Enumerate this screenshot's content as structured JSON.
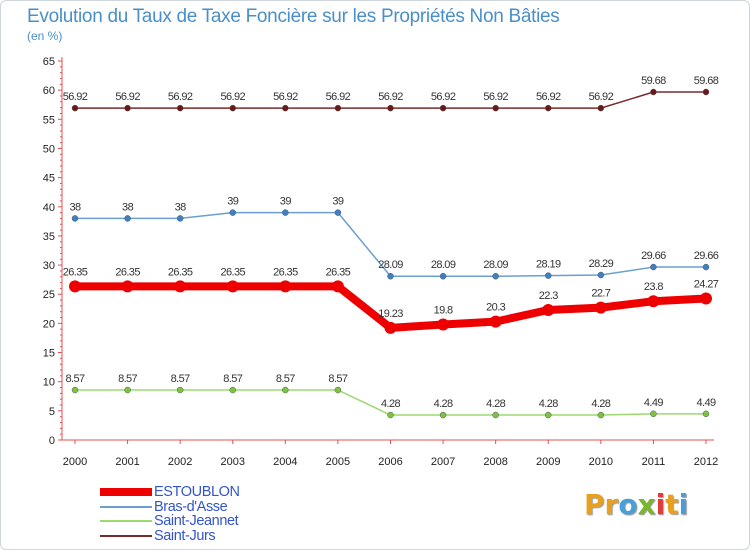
{
  "title": "Evolution du Taux de Taxe Foncière sur les Propriétés Non Bâties",
  "unit_label": "(en %)",
  "logo": {
    "text": "Proxiti",
    "letters": [
      {
        "ch": "P",
        "color": "#e8a020"
      },
      {
        "ch": "r",
        "color": "#e8a020"
      },
      {
        "ch": "o",
        "color": "#4a9fd8"
      },
      {
        "ch": "x",
        "color": "#78b828"
      },
      {
        "ch": "i",
        "color": "#e03a3a"
      },
      {
        "ch": "t",
        "color": "#e8a020"
      },
      {
        "ch": "i",
        "color": "#4a9fd8"
      }
    ]
  },
  "chart_data": {
    "type": "line",
    "title": "Evolution du Taux de Taxe Foncière sur les Propriétés Non Bâties",
    "ylabel": "(en %)",
    "xlabel": "",
    "ylim": [
      0,
      65
    ],
    "yticks": [
      0,
      5,
      10,
      15,
      20,
      25,
      30,
      35,
      40,
      45,
      50,
      55,
      60,
      65
    ],
    "grid": false,
    "legend_position": "bottom-left",
    "categories": [
      "2000",
      "2001",
      "2002",
      "2003",
      "2004",
      "2005",
      "2006",
      "2007",
      "2008",
      "2009",
      "2010",
      "2011",
      "2012"
    ],
    "series": [
      {
        "name": "Saint-Jurs",
        "color": "#7a2a2a",
        "marker": "#6a1818",
        "width": 1.5,
        "values": [
          56.92,
          56.92,
          56.92,
          56.92,
          56.92,
          56.92,
          56.92,
          56.92,
          56.92,
          56.92,
          56.92,
          59.68,
          59.68
        ],
        "labels": [
          "56.92",
          "56.92",
          "56.92",
          "56.92",
          "56.92",
          "56.92",
          "56.92",
          "56.92",
          "56.92",
          "56.92",
          "56.92",
          "59.68",
          "59.68"
        ]
      },
      {
        "name": "Bras-d'Asse",
        "color": "#6a9fd0",
        "marker": "#3f7fc4",
        "width": 1.5,
        "values": [
          38,
          38,
          38,
          39,
          39,
          39,
          28.09,
          28.09,
          28.09,
          28.19,
          28.29,
          29.66,
          29.66
        ],
        "labels": [
          "38",
          "38",
          "38",
          "39",
          "39",
          "39",
          "28.09",
          "28.09",
          "28.09",
          "28.19",
          "28.29",
          "29.66",
          "29.66"
        ]
      },
      {
        "name": "ESTOUBLON",
        "color": "#ee0000",
        "marker": "#ee0000",
        "width": 8,
        "values": [
          26.35,
          26.35,
          26.35,
          26.35,
          26.35,
          26.35,
          19.23,
          19.8,
          20.3,
          22.3,
          22.7,
          23.8,
          24.27
        ],
        "labels": [
          "26.35",
          "26.35",
          "26.35",
          "26.35",
          "26.35",
          "26.35",
          "19.23",
          "19.8",
          "20.3",
          "22.3",
          "22.7",
          "23.8",
          "24.27"
        ]
      },
      {
        "name": "Saint-Jeannet",
        "color": "#9dd870",
        "marker": "#7cc440",
        "width": 1.5,
        "values": [
          8.57,
          8.57,
          8.57,
          8.57,
          8.57,
          8.57,
          4.28,
          4.28,
          4.28,
          4.28,
          4.28,
          4.49,
          4.49
        ],
        "labels": [
          "8.57",
          "8.57",
          "8.57",
          "8.57",
          "8.57",
          "8.57",
          "4.28",
          "4.28",
          "4.28",
          "4.28",
          "4.28",
          "4.49",
          "4.49"
        ]
      }
    ],
    "legend": [
      {
        "name": "ESTOUBLON",
        "color": "#ee0000",
        "width": 8
      },
      {
        "name": "Bras-d'Asse",
        "color": "#6a9fd0",
        "width": 2
      },
      {
        "name": "Saint-Jeannet",
        "color": "#9dd870",
        "width": 2
      },
      {
        "name": "Saint-Jurs",
        "color": "#7a2a2a",
        "width": 2
      }
    ]
  }
}
